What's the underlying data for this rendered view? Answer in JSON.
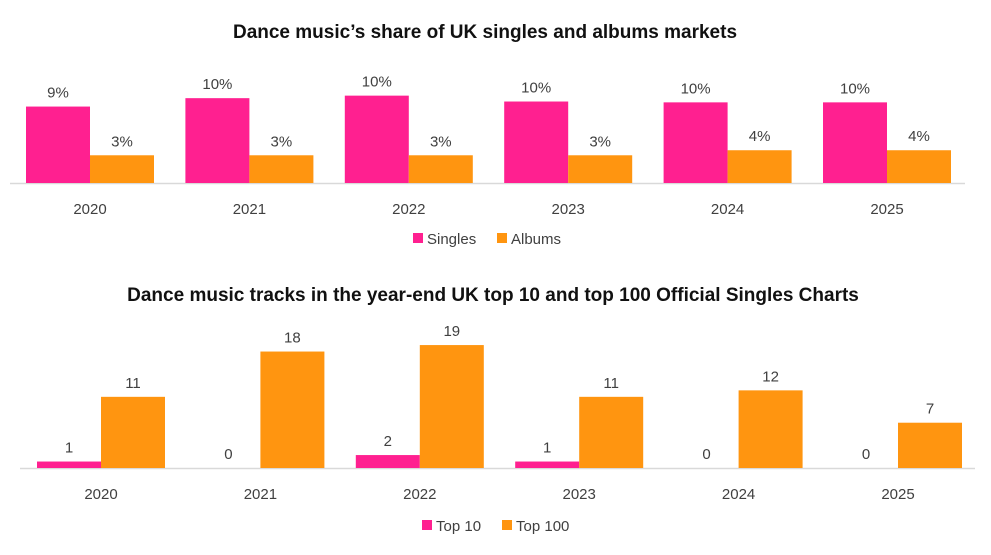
{
  "colors": {
    "pink": "#FF2090",
    "orange": "#FF9510",
    "axis": "#d9d9d9"
  },
  "chart_data": [
    {
      "type": "bar",
      "title": "Dance music’s share of UK singles and albums markets",
      "categories": [
        "2020",
        "2021",
        "2022",
        "2023",
        "2024",
        "2025"
      ],
      "series": [
        {
          "name": "Singles",
          "values": [
            9.1,
            10.1,
            10.4,
            9.7,
            9.6,
            9.6
          ],
          "labels": [
            "9%",
            "10%",
            "10%",
            "10%",
            "10%",
            "10%"
          ]
        },
        {
          "name": "Albums",
          "values": [
            3.3,
            3.3,
            3.3,
            3.3,
            3.9,
            3.9
          ],
          "labels": [
            "3%",
            "3%",
            "3%",
            "3%",
            "4%",
            "4%"
          ]
        }
      ],
      "xlabel": "",
      "ylabel": "",
      "ylim": [
        0,
        12
      ],
      "grid": false,
      "legend": "bottom"
    },
    {
      "type": "bar",
      "title": "Dance music tracks in the year-end UK top 10 and top 100 Official Singles Charts",
      "categories": [
        "2020",
        "2021",
        "2022",
        "2023",
        "2024",
        "2025"
      ],
      "series": [
        {
          "name": "Top 10",
          "values": [
            1,
            0,
            2,
            1,
            0,
            0
          ],
          "labels": [
            "1",
            "0",
            "2",
            "1",
            "0",
            "0"
          ]
        },
        {
          "name": "Top 100",
          "values": [
            11,
            18,
            19,
            11,
            12,
            7
          ],
          "labels": [
            "11",
            "18",
            "19",
            "11",
            "12",
            "7"
          ]
        }
      ],
      "xlabel": "",
      "ylabel": "",
      "ylim": [
        0,
        20
      ],
      "grid": false,
      "legend": "bottom"
    }
  ]
}
